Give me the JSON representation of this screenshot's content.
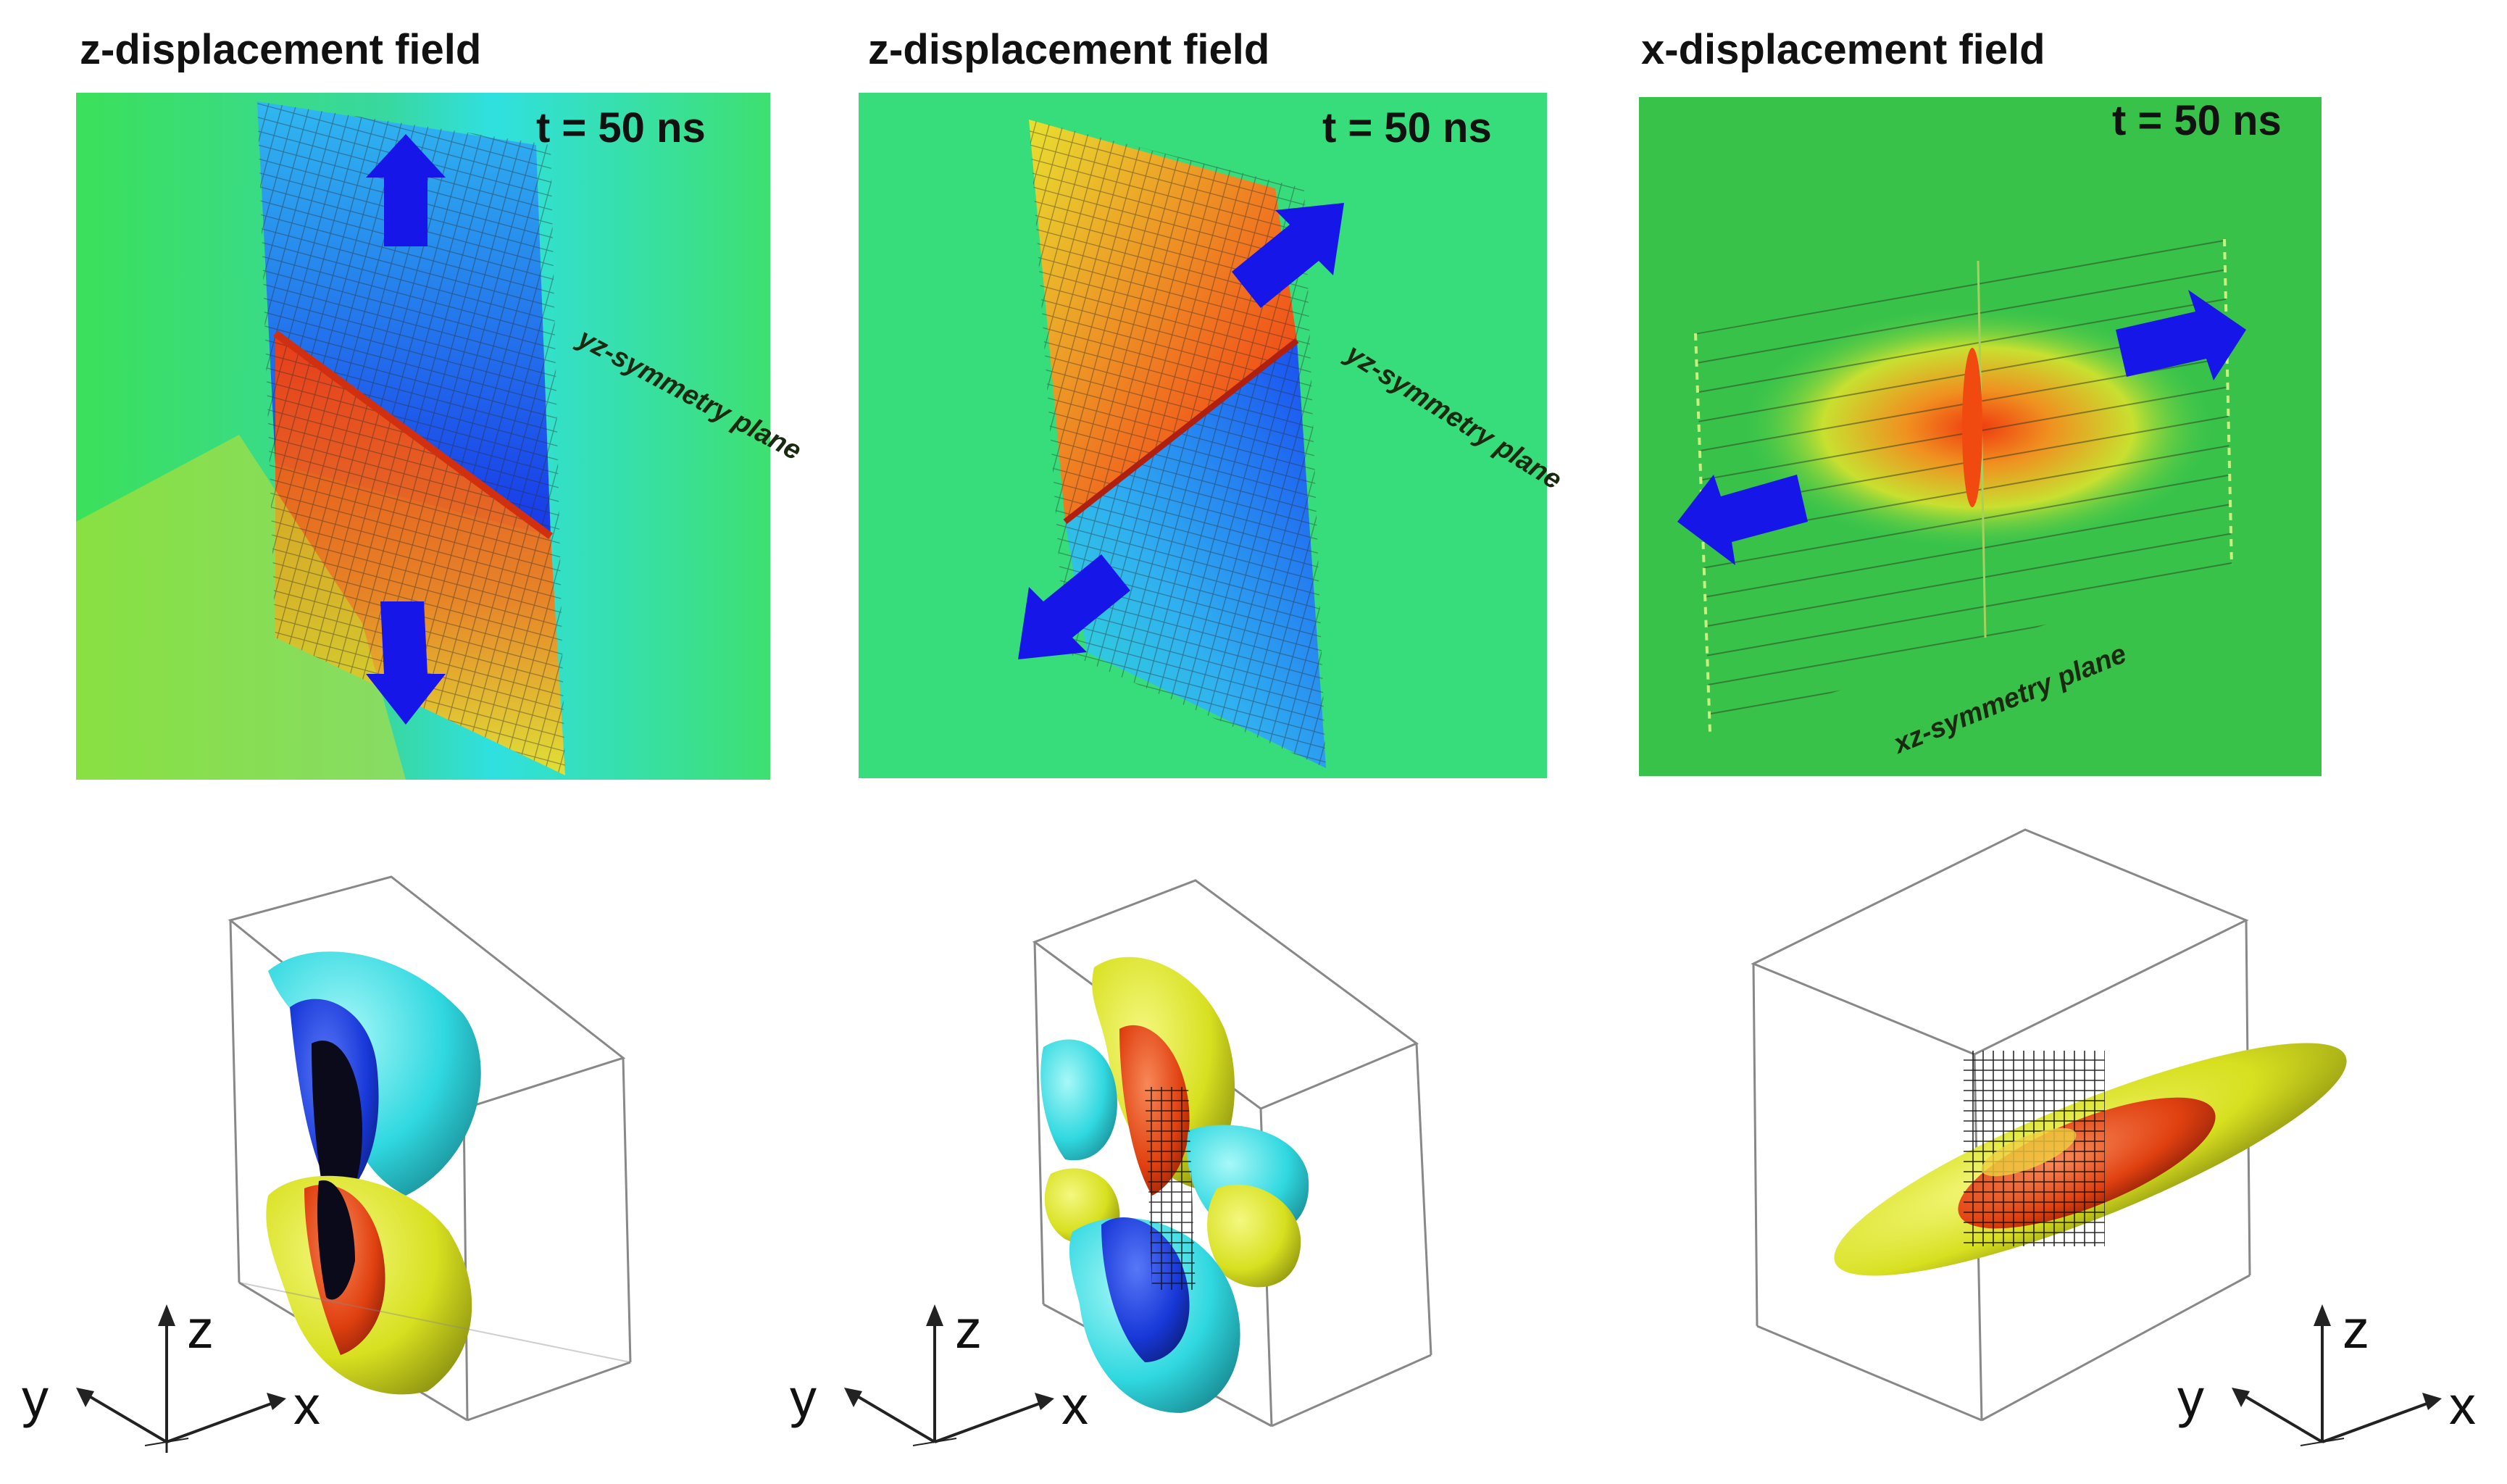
{
  "panels": [
    {
      "title": "z-displacement field",
      "time_label": "t = 50 ns",
      "plane_label": "yz-symmetry plane"
    },
    {
      "title": "z-displacement field",
      "time_label": "t = 50 ns",
      "plane_label": "yz-symmetry plane"
    },
    {
      "title": "x-displacement field",
      "time_label": "t = 50 ns",
      "plane_label": "xz-symmetry plane"
    }
  ],
  "axes": [
    {
      "z": "z",
      "y": "y",
      "x": "x"
    },
    {
      "z": "z",
      "y": "y",
      "x": "x"
    },
    {
      "z": "z",
      "y": "y",
      "x": "x"
    }
  ],
  "colors": {
    "background_field": "#3fdc5e",
    "field_blue": "#1a3cf0",
    "field_cyan": "#2fe4e0",
    "field_yellow": "#e8ea2a",
    "field_red": "#f04a10",
    "arrow": "#1616e8",
    "iso_yellow": "#d8e020",
    "iso_cyan": "#30d8e0",
    "iso_blue": "#1838d8",
    "iso_red": "#e04010"
  }
}
